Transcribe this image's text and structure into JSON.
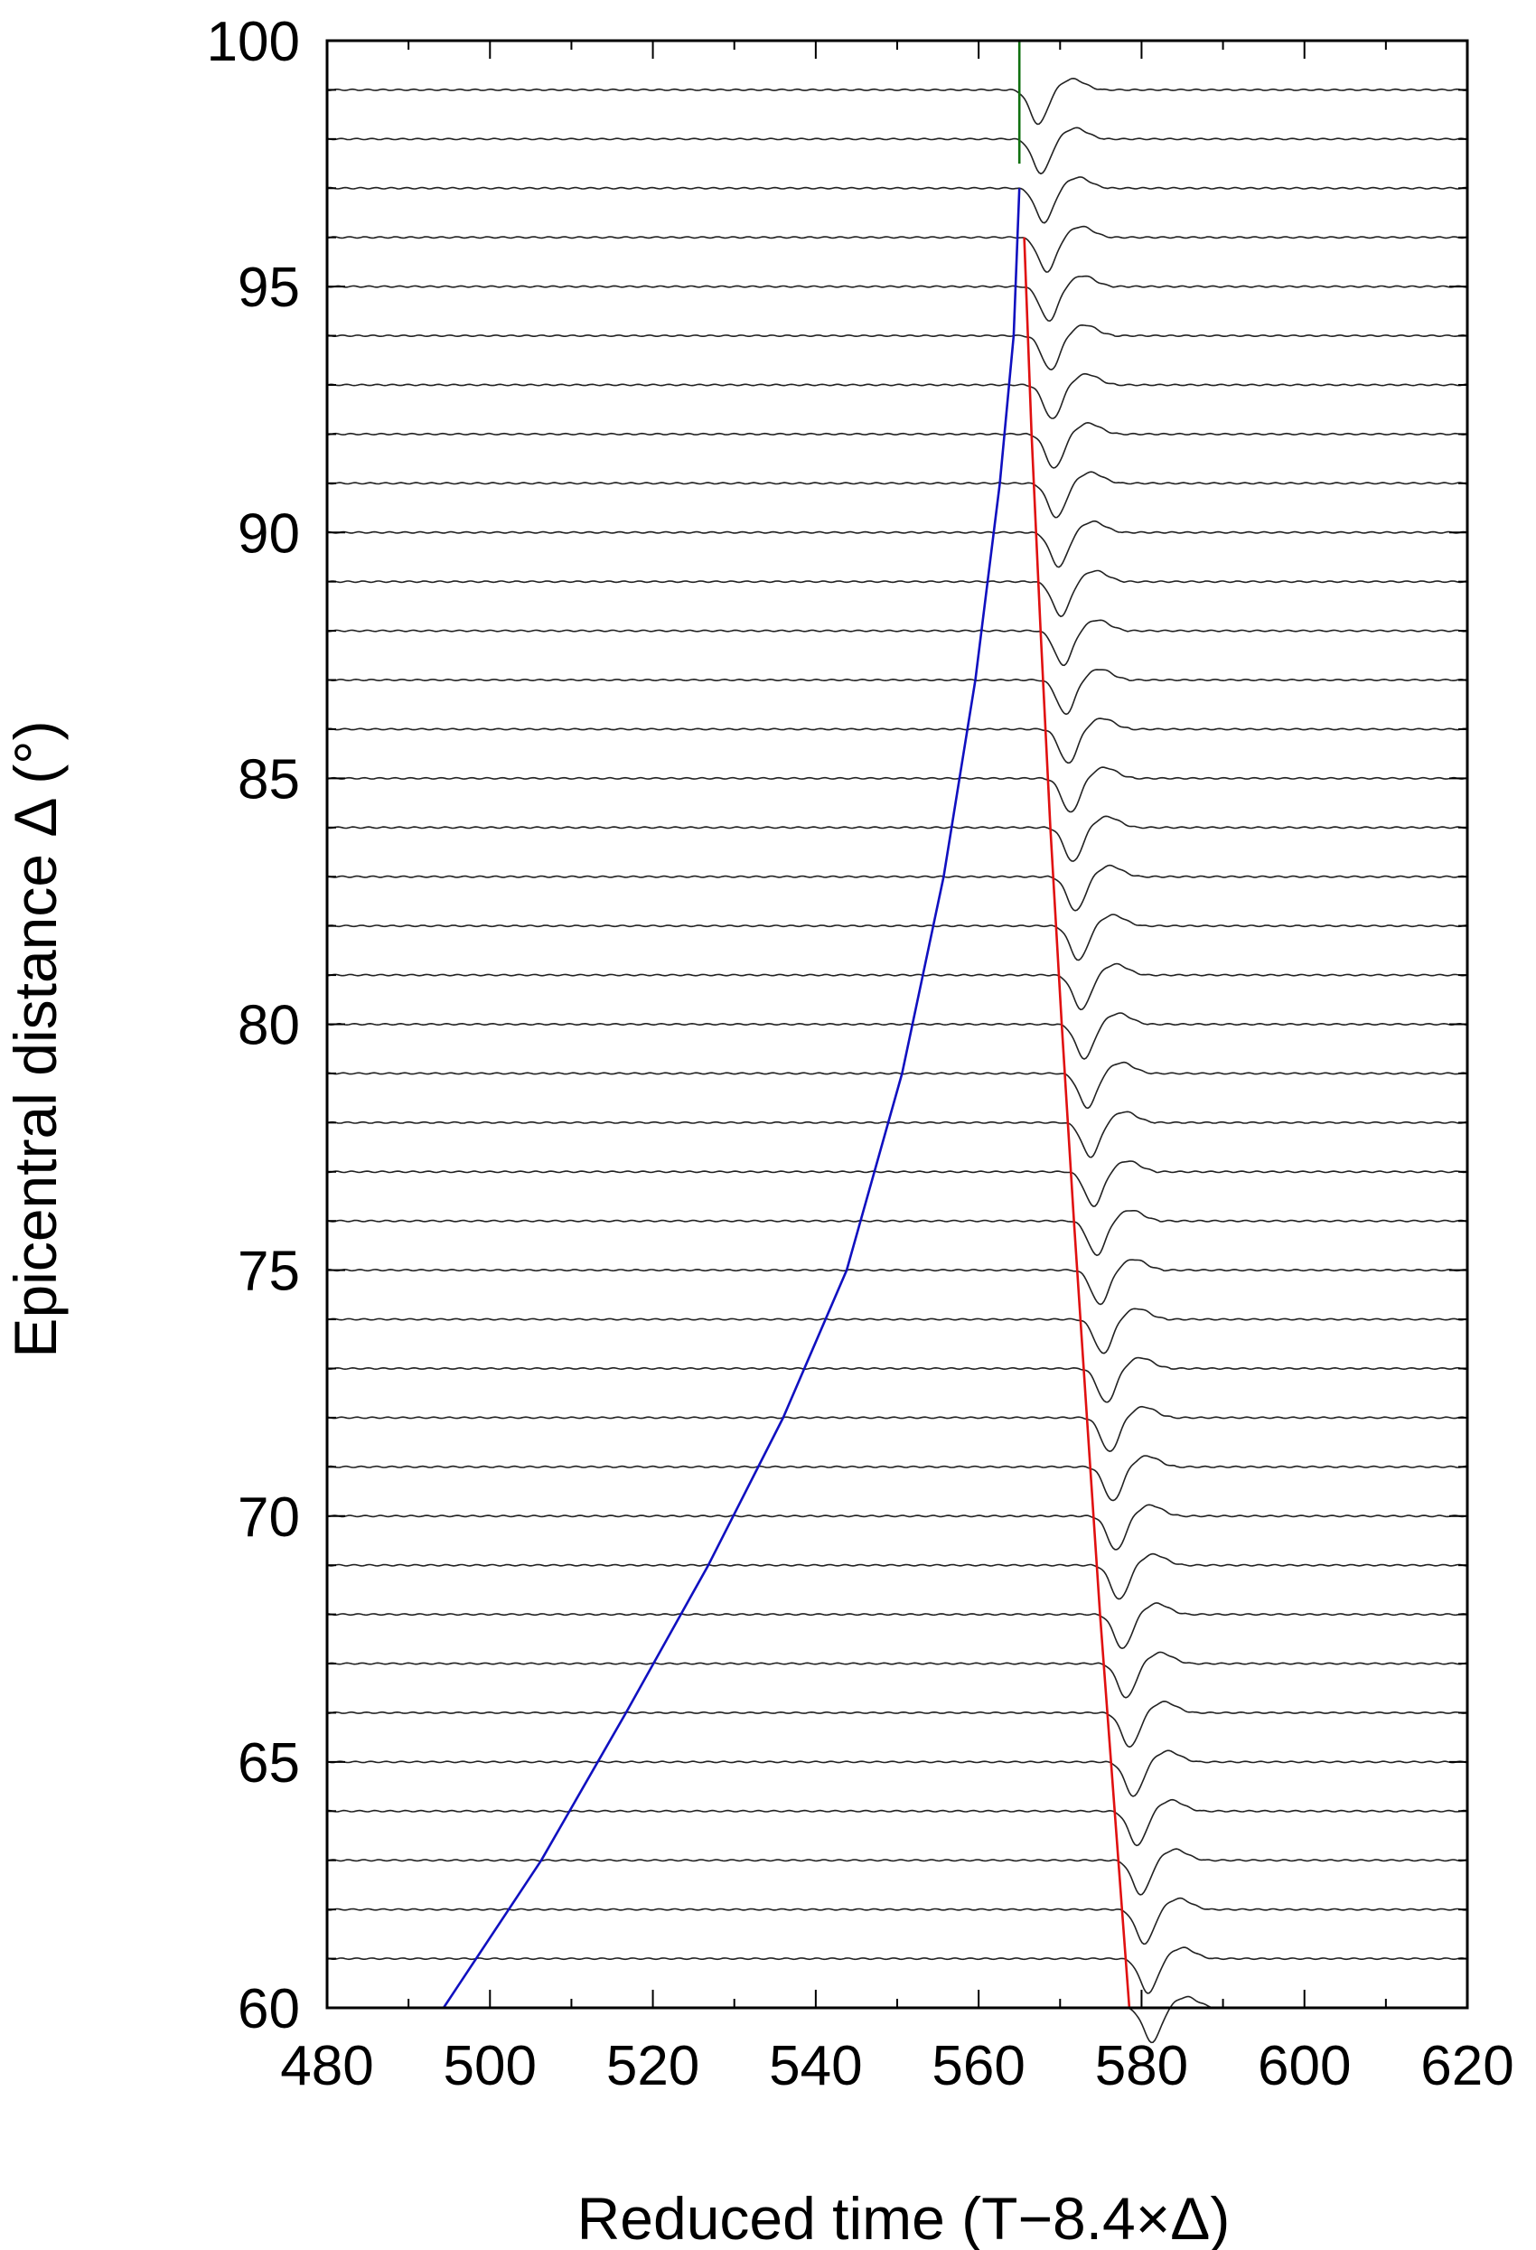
{
  "chart_data": {
    "type": "line",
    "title": "",
    "xlabel": "Reduced time (T−8.4×Δ)",
    "ylabel": "Epicentral distance Δ (°)",
    "xlim": [
      480,
      620
    ],
    "ylim": [
      60,
      100
    ],
    "xticks": [
      480,
      500,
      520,
      540,
      560,
      580,
      600,
      620
    ],
    "yticks": [
      60,
      65,
      70,
      75,
      80,
      85,
      90,
      95,
      100
    ],
    "x_minor_step": 10,
    "y_minor_step": 1,
    "grid": false,
    "legend": "none",
    "traces": {
      "description_note": "",
      "distances_start": 60,
      "distances_end": 99,
      "distance_step": 1,
      "pulse_onset_fraction": 0.45
    },
    "series": [
      {
        "color": "#1010c0",
        "points": [
          [
            494.3,
            60
          ],
          [
            506.3,
            63
          ],
          [
            516.7,
            66
          ],
          [
            526.8,
            69
          ],
          [
            536.0,
            72
          ],
          [
            543.8,
            75
          ],
          [
            550.6,
            79
          ],
          [
            555.7,
            83
          ],
          [
            559.6,
            87
          ],
          [
            562.6,
            91
          ],
          [
            564.3,
            94
          ],
          [
            565.0,
            97
          ]
        ]
      },
      {
        "color": "#e01010",
        "points": [
          [
            578.5,
            60
          ],
          [
            576.7,
            64
          ],
          [
            574.9,
            68
          ],
          [
            573.3,
            72
          ],
          [
            571.7,
            76
          ],
          [
            570.2,
            80
          ],
          [
            568.8,
            84
          ],
          [
            567.6,
            88
          ],
          [
            566.5,
            92
          ],
          [
            565.6,
            96
          ]
        ]
      },
      {
        "color": "#107010",
        "points": [
          [
            565.0,
            97.5
          ],
          [
            565.0,
            100
          ]
        ]
      }
    ]
  }
}
